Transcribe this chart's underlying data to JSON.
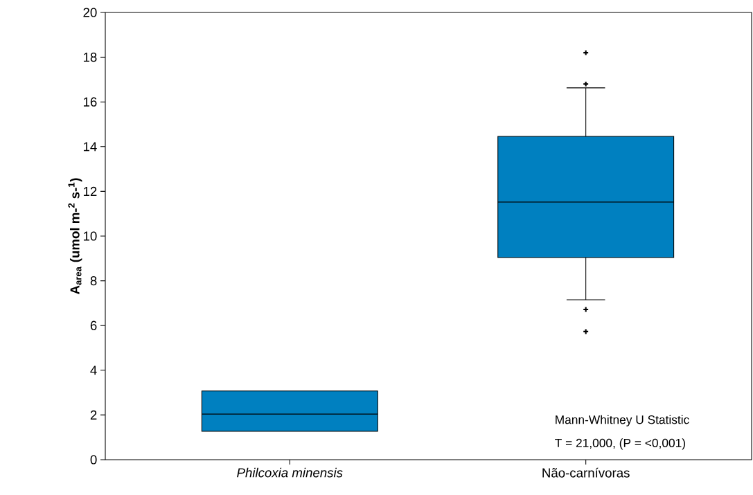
{
  "chart_data": {
    "type": "box",
    "ylabel": "A$_{area}$ (umol m-$^{2}$ s-$^{1}$)",
    "categories": [
      "Philcoxia minensis",
      "Não-carnívoras"
    ],
    "boxes": [
      {
        "low": 1.27,
        "q1": 1.27,
        "median": 2.04,
        "q3": 3.07,
        "high": 3.07
      },
      {
        "low": 7.15,
        "q1": 9.04,
        "median": 11.52,
        "q3": 14.46,
        "high": 16.63,
        "outliers": [
          18.2,
          16.8,
          6.72,
          5.73
        ]
      }
    ],
    "color": "#0080c0",
    "marker": "cross",
    "ylim": [
      0,
      20
    ],
    "yticks": [
      0,
      2,
      4,
      6,
      8,
      10,
      12,
      14,
      16,
      18,
      20
    ],
    "annotations": [
      "Mann-Whitney U Statistic",
      "T = 21,000,  (P = <0,001)"
    ]
  }
}
